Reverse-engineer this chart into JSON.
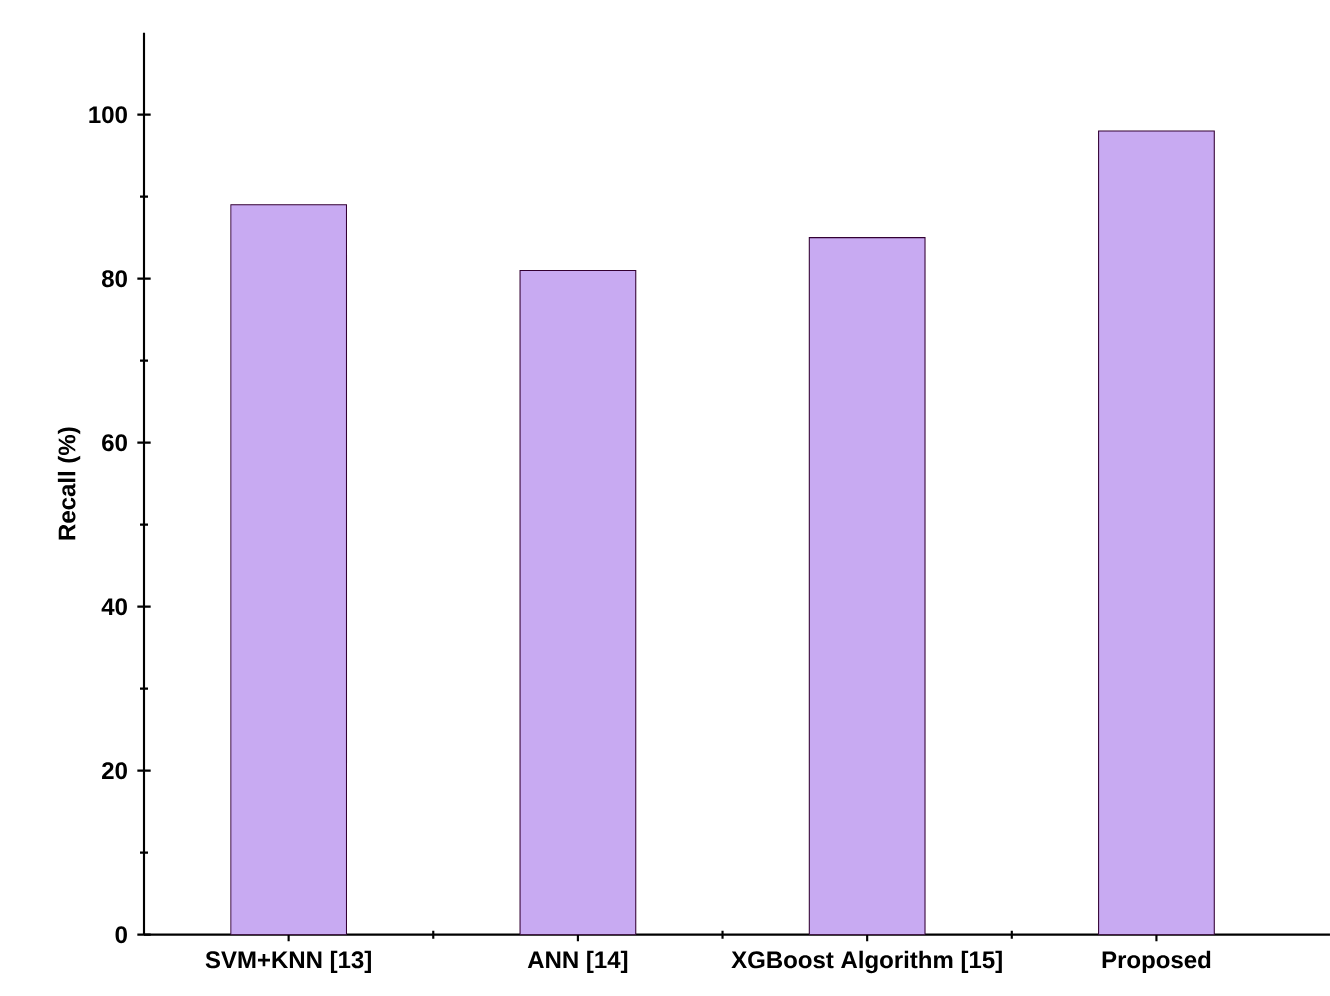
{
  "chart_data": {
    "type": "bar",
    "ylabel": "Recall (%)",
    "categories": [
      "SVM+KNN [13]",
      "ANN [14]",
      "XGBoost Algorithm [15]",
      "Proposed"
    ],
    "values": [
      89,
      81,
      85,
      98
    ],
    "color": "#c8aaf2",
    "ylim": [
      0,
      110
    ],
    "yticks": [
      0,
      20,
      40,
      60,
      80,
      100
    ],
    "grid": false
  }
}
